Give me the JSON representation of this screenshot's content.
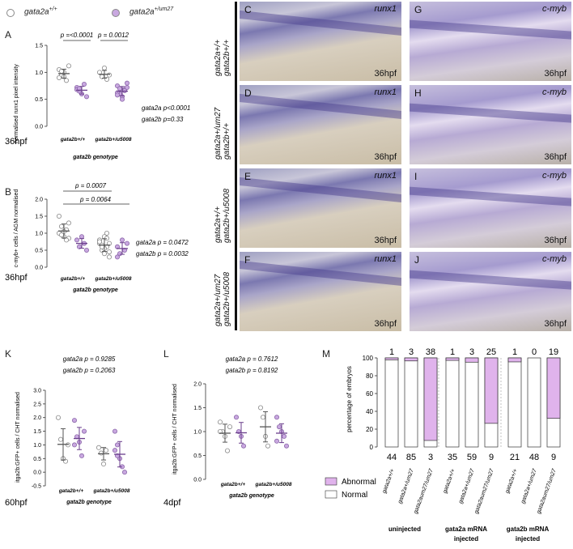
{
  "legend": {
    "wt_label": "gata2a",
    "wt_sup": "+/+",
    "mut_label": "gata2a",
    "mut_sup": "+/um27"
  },
  "panelA": {
    "letter": "A",
    "ylabel": "normalised runx1 pixel intensity",
    "p1": "p =<0.0001",
    "p2": "p = 0.0012",
    "stat1": "gata2a p<0.0001",
    "stat2": "gata2b p=0.33",
    "time": "36hpf",
    "xlabel": "gata2b genotype",
    "cat1": "gata2b+/+",
    "cat2": "gata2b+/u5008",
    "yticks": [
      "0.0",
      "0.5",
      "1.0",
      "1.5"
    ]
  },
  "panelB": {
    "letter": "B",
    "ylabel": "c-myb+ cells / AGM normalised",
    "p1": "p = 0.0007",
    "p2": "p = 0.0064",
    "stat1": "gata2a p = 0.0472",
    "stat2": "gata2b p = 0.0032",
    "time": "36hpf",
    "xlabel": "gata2b genotype",
    "cat1": "gata2b+/+",
    "cat2": "gata2b+/u5008",
    "yticks": [
      "0.0",
      "0.5",
      "1.0",
      "1.5",
      "2.0"
    ]
  },
  "photos": {
    "rows": [
      {
        "label1": "gata2a+/+",
        "label2": "gata2b+/+"
      },
      {
        "label1": "gata2a+/um27",
        "label2": "gata2b+/+"
      },
      {
        "label1": "gata2a+/+",
        "label2": "gata2b+/u5008"
      },
      {
        "label1": "gata2a+/um27",
        "label2": "gata2b+/u5008"
      }
    ],
    "left": [
      {
        "letter": "C",
        "gene": "runx1",
        "time": "36hpf"
      },
      {
        "letter": "D",
        "gene": "runx1",
        "time": "36hpf"
      },
      {
        "letter": "E",
        "gene": "runx1",
        "time": "36hpf"
      },
      {
        "letter": "F",
        "gene": "runx1",
        "time": "36hpf"
      }
    ],
    "right": [
      {
        "letter": "G",
        "gene": "c-myb",
        "time": "36hpf"
      },
      {
        "letter": "H",
        "gene": "c-myb",
        "time": "36hpf"
      },
      {
        "letter": "I",
        "gene": "c-myb",
        "time": "36hpf"
      },
      {
        "letter": "J",
        "gene": "c-myb",
        "time": "36hpf"
      }
    ]
  },
  "panelK": {
    "letter": "K",
    "stat1": "gata2a p = 0.9285",
    "stat2": "gata2b p = 0.2063",
    "ylabel": "itga2b:GFP+ cells / CHT normalised",
    "time": "60hpf",
    "xlabel": "gata2b genotype",
    "cat1": "gata2b+/+",
    "cat2": "gata2b+/u5008",
    "yticks": [
      "-0.5",
      "0.0",
      "0.5",
      "1.0",
      "1.5",
      "2.0",
      "2.5",
      "3.0"
    ]
  },
  "panelL": {
    "letter": "L",
    "stat1": "gata2a p = 0.7612",
    "stat2": "gata2b p = 0.8192",
    "ylabel": "itga2b:GFP+ cells / CHT normalised",
    "time": "4dpf",
    "xlabel": "gata2b genotype",
    "cat1": "gata2b+/+",
    "cat2": "gata2b+/u5008",
    "yticks": [
      "0.0",
      "0.5",
      "1.0",
      "1.5",
      "2.0"
    ]
  },
  "panelM": {
    "letter": "M",
    "ylabel": "percentage of embryos",
    "yticks": [
      "0",
      "20",
      "40",
      "60",
      "80",
      "100"
    ],
    "legend_abnormal": "Abnormal",
    "legend_normal": "Normal",
    "top_counts": [
      "1",
      "3",
      "38",
      "1",
      "3",
      "25",
      "1",
      "0",
      "19"
    ],
    "bottom_counts": [
      "44",
      "85",
      "3",
      "35",
      "59",
      "9",
      "21",
      "48",
      "9"
    ],
    "cat_labels": [
      "gata2a+/+",
      "gata2a+/um27",
      "gata2aum27/um27",
      "gata2a+/+",
      "gata2a+/um27",
      "gata2aum27/um27",
      "gata2a+/+",
      "gata2a+/um27",
      "gata2aum27/um27"
    ],
    "groups": [
      "uninjected",
      "gata2a mRNA injected",
      "gata2b mRNA injected"
    ],
    "group_line1": [
      "uninjected",
      "gata2a mRNA",
      "gata2b mRNA"
    ],
    "group_line2": [
      "",
      "injected",
      "injected"
    ]
  },
  "chart_data": [
    {
      "type": "scatter",
      "title": "",
      "ylabel": "normalised runx1 pixel intensity",
      "xlabel": "gata2b genotype",
      "ylim": [
        0,
        1.5
      ],
      "categories": [
        "gata2b+/+",
        "gata2b+/u5008"
      ],
      "series": [
        {
          "name": "gata2a+/+",
          "values": [
            [
              1.05,
              0.95,
              1.0,
              0.85,
              1.12,
              0.9,
              1.02,
              0.92
            ],
            [
              1.0,
              0.92,
              1.08,
              0.87,
              0.95
            ]
          ]
        },
        {
          "name": "gata2a+/um27",
          "values": [
            [
              0.72,
              0.65,
              0.6,
              0.78,
              0.55,
              0.68,
              0.7
            ],
            [
              0.75,
              0.6,
              0.55,
              0.68,
              0.8,
              0.62,
              0.7,
              0.5,
              0.66,
              0.72,
              0.58
            ]
          ]
        }
      ]
    },
    {
      "type": "scatter",
      "title": "",
      "ylabel": "c-myb+ cells / AGM normalised",
      "xlabel": "gata2b genotype",
      "ylim": [
        0,
        2.0
      ],
      "categories": [
        "gata2b+/+",
        "gata2b+/u5008"
      ],
      "series": [
        {
          "name": "gata2a+/+",
          "values": [
            [
              1.0,
              1.2,
              0.9,
              1.1,
              0.85,
              1.5,
              0.95,
              1.05,
              0.8,
              1.3
            ],
            [
              0.7,
              0.5,
              0.9,
              0.6,
              0.3,
              0.8,
              0.65,
              0.55,
              1.0,
              0.45,
              0.75,
              0.6,
              0.4,
              0.85,
              0.7
            ]
          ]
        },
        {
          "name": "gata2a+/um27",
          "values": [
            [
              0.8,
              0.6,
              0.9,
              0.7,
              0.5
            ],
            [
              0.6,
              0.4,
              0.8,
              0.5,
              0.7,
              0.3
            ]
          ]
        }
      ]
    },
    {
      "type": "scatter",
      "title": "",
      "ylabel": "itga2b:GFP+ cells / CHT normalised",
      "xlabel": "gata2b genotype",
      "ylim": [
        -0.5,
        3.0
      ],
      "categories": [
        "gata2b+/+",
        "gata2b+/u5008"
      ],
      "series": [
        {
          "name": "gata2a+/+",
          "values": [
            [
              2.0,
              1.2,
              0.5,
              0.4,
              1.0
            ],
            [
              0.9,
              0.7,
              0.3,
              0.8
            ]
          ]
        },
        {
          "name": "gata2a+/um27",
          "values": [
            [
              1.9,
              1.3,
              1.1,
              0.6,
              1.5,
              1.0
            ],
            [
              1.5,
              1.0,
              0.5,
              0.2,
              0.0,
              0.8,
              0.6
            ]
          ]
        }
      ]
    },
    {
      "type": "scatter",
      "title": "",
      "ylabel": "itga2b:GFP+ cells / CHT normalised",
      "xlabel": "gata2b genotype",
      "ylim": [
        0,
        2.0
      ],
      "categories": [
        "gata2b+/+",
        "gata2b+/u5008"
      ],
      "series": [
        {
          "name": "gata2a+/+",
          "values": [
            [
              1.2,
              1.0,
              0.9,
              0.6,
              1.1,
              1.0
            ],
            [
              1.5,
              1.3,
              0.9,
              0.7
            ]
          ]
        },
        {
          "name": "gata2a+/um27",
          "values": [
            [
              1.3,
              1.0,
              0.9,
              0.7
            ],
            [
              1.3,
              1.1,
              1.0,
              0.9,
              0.7,
              0.8
            ]
          ]
        }
      ]
    },
    {
      "type": "bar",
      "title": "",
      "ylabel": "percentage of embryos",
      "ylim": [
        0,
        100
      ],
      "categories": [
        "uninjected gata2a+/+",
        "uninjected gata2a+/um27",
        "uninjected gata2aum27/um27",
        "gata2a mRNA gata2a+/+",
        "gata2a mRNA gata2a+/um27",
        "gata2a mRNA gata2aum27/um27",
        "gata2b mRNA gata2a+/+",
        "gata2b mRNA gata2a+/um27",
        "gata2b mRNA gata2aum27/um27"
      ],
      "series": [
        {
          "name": "Abnormal",
          "values": [
            2.2,
            3.4,
            92.7,
            2.8,
            4.8,
            73.5,
            4.5,
            0,
            67.9
          ]
        },
        {
          "name": "Normal",
          "values": [
            97.8,
            96.6,
            7.3,
            97.2,
            95.2,
            26.5,
            95.5,
            100,
            32.1
          ]
        }
      ]
    }
  ]
}
